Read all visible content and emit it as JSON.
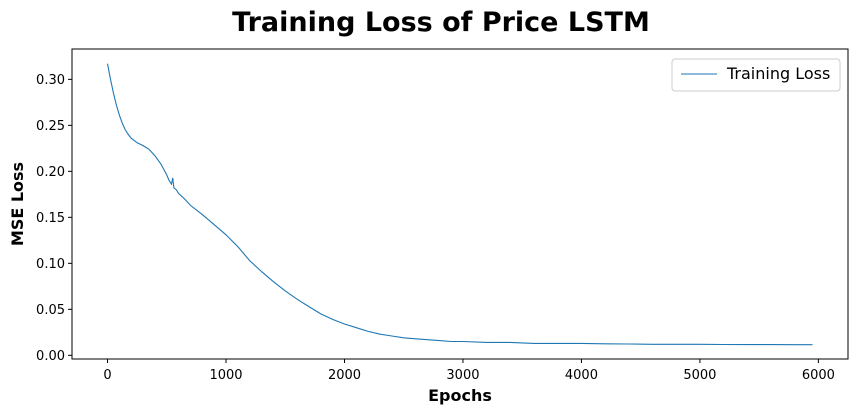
{
  "chart_data": {
    "type": "line",
    "title": "Training Loss of Price LSTM",
    "xlabel": "Epochs",
    "ylabel": "MSE Loss",
    "xlim": [
      -300,
      6250
    ],
    "ylim": [
      -0.004,
      0.333
    ],
    "xticks": [
      0,
      1000,
      2000,
      3000,
      4000,
      5000,
      6000
    ],
    "xtick_labels": [
      "0",
      "1000",
      "2000",
      "3000",
      "4000",
      "5000",
      "6000"
    ],
    "yticks": [
      0.0,
      0.05,
      0.1,
      0.15,
      0.2,
      0.25,
      0.3
    ],
    "ytick_labels": [
      "0.00",
      "0.05",
      "0.10",
      "0.15",
      "0.20",
      "0.25",
      "0.30"
    ],
    "grid": false,
    "legend": "top-right",
    "series": [
      {
        "name": "Training Loss",
        "color": "#1f77b4",
        "x": [
          0,
          25,
          50,
          75,
          100,
          125,
          150,
          175,
          200,
          250,
          300,
          350,
          400,
          450,
          500,
          520,
          540,
          550,
          560,
          580,
          600,
          650,
          700,
          800,
          900,
          1000,
          1100,
          1200,
          1300,
          1400,
          1500,
          1600,
          1700,
          1800,
          1900,
          2000,
          2100,
          2200,
          2300,
          2400,
          2500,
          2600,
          2700,
          2800,
          2900,
          3000,
          3200,
          3400,
          3600,
          3800,
          4000,
          4200,
          4400,
          4600,
          4800,
          5000,
          5200,
          5400,
          5600,
          5800,
          5950
        ],
        "y": [
          0.317,
          0.3,
          0.285,
          0.272,
          0.261,
          0.252,
          0.245,
          0.24,
          0.236,
          0.231,
          0.228,
          0.224,
          0.217,
          0.208,
          0.196,
          0.19,
          0.186,
          0.193,
          0.182,
          0.18,
          0.176,
          0.17,
          0.163,
          0.153,
          0.142,
          0.131,
          0.118,
          0.103,
          0.091,
          0.08,
          0.07,
          0.061,
          0.053,
          0.045,
          0.039,
          0.034,
          0.03,
          0.026,
          0.023,
          0.021,
          0.019,
          0.018,
          0.017,
          0.016,
          0.015,
          0.015,
          0.014,
          0.014,
          0.013,
          0.013,
          0.013,
          0.0125,
          0.0123,
          0.012,
          0.012,
          0.012,
          0.0118,
          0.0117,
          0.0116,
          0.0115,
          0.0115
        ]
      }
    ]
  }
}
